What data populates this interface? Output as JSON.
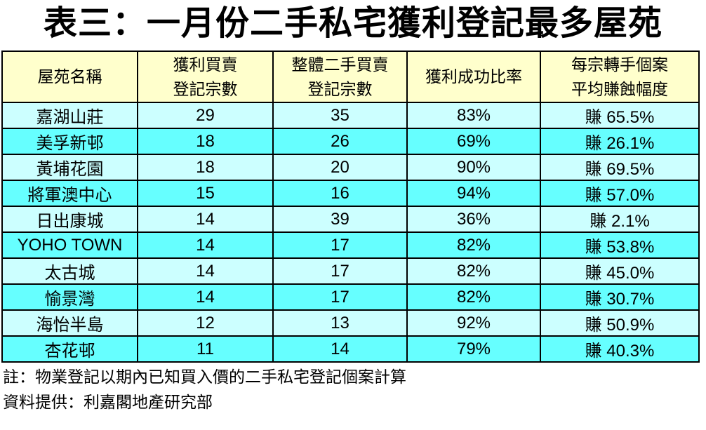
{
  "page": {
    "title": "表三：一月份二手私宅獲利登記最多屋苑",
    "notes": [
      "註：物業登記以期內已知買入價的二手私宅登記個案計算",
      "資料提供：利嘉閣地產研究部"
    ]
  },
  "colors": {
    "header_bg": "#FFFFCC",
    "row_odd_bg": "#CCFFFF",
    "row_even_bg": "#66FFFF",
    "border": "#000000",
    "text": "#000000",
    "page_bg": "#FFFFFF"
  },
  "table": {
    "columns": [
      "屋苑名稱",
      "獲利買賣\n登記宗數",
      "整體二手買賣\n登記宗數",
      "獲利成功比率",
      "每宗轉手個案\n平均賺蝕幅度"
    ],
    "rows": [
      [
        "嘉湖山莊",
        "29",
        "35",
        "83%",
        "賺 65.5%"
      ],
      [
        "美孚新邨",
        "18",
        "26",
        "69%",
        "賺 26.1%"
      ],
      [
        "黃埔花園",
        "18",
        "20",
        "90%",
        "賺 69.5%"
      ],
      [
        "將軍澳中心",
        "15",
        "16",
        "94%",
        "賺 57.0%"
      ],
      [
        "日出康城",
        "14",
        "39",
        "36%",
        "賺 2.1%"
      ],
      [
        "YOHO TOWN",
        "14",
        "17",
        "82%",
        "賺 53.8%"
      ],
      [
        "太古城",
        "14",
        "17",
        "82%",
        "賺 45.0%"
      ],
      [
        "愉景灣",
        "14",
        "17",
        "82%",
        "賺 30.7%"
      ],
      [
        "海怡半島",
        "12",
        "13",
        "92%",
        "賺 50.9%"
      ],
      [
        "杏花邨",
        "11",
        "14",
        "79%",
        "賺 40.3%"
      ]
    ]
  },
  "chart_data": {
    "type": "table",
    "title": "表三：一月份二手私宅獲利登記最多屋苑",
    "columns": [
      "屋苑名稱",
      "獲利買賣登記宗數",
      "整體二手買賣登記宗數",
      "獲利成功比率",
      "每宗轉手個案平均賺蝕幅度"
    ],
    "rows": [
      {
        "estate": "嘉湖山莊",
        "profit_registrations": 29,
        "total_registrations": 35,
        "profit_rate": "83%",
        "avg_gain": "賺 65.5%"
      },
      {
        "estate": "美孚新邨",
        "profit_registrations": 18,
        "total_registrations": 26,
        "profit_rate": "69%",
        "avg_gain": "賺 26.1%"
      },
      {
        "estate": "黃埔花園",
        "profit_registrations": 18,
        "total_registrations": 20,
        "profit_rate": "90%",
        "avg_gain": "賺 69.5%"
      },
      {
        "estate": "將軍澳中心",
        "profit_registrations": 15,
        "total_registrations": 16,
        "profit_rate": "94%",
        "avg_gain": "賺 57.0%"
      },
      {
        "estate": "日出康城",
        "profit_registrations": 14,
        "total_registrations": 39,
        "profit_rate": "36%",
        "avg_gain": "賺 2.1%"
      },
      {
        "estate": "YOHO TOWN",
        "profit_registrations": 14,
        "total_registrations": 17,
        "profit_rate": "82%",
        "avg_gain": "賺 53.8%"
      },
      {
        "estate": "太古城",
        "profit_registrations": 14,
        "total_registrations": 17,
        "profit_rate": "82%",
        "avg_gain": "賺 45.0%"
      },
      {
        "estate": "愉景灣",
        "profit_registrations": 14,
        "total_registrations": 17,
        "profit_rate": "82%",
        "avg_gain": "賺 30.7%"
      },
      {
        "estate": "海怡半島",
        "profit_registrations": 12,
        "total_registrations": 13,
        "profit_rate": "92%",
        "avg_gain": "賺 50.9%"
      },
      {
        "estate": "杏花邨",
        "profit_registrations": 11,
        "total_registrations": 14,
        "profit_rate": "79%",
        "avg_gain": "賺 40.3%"
      }
    ],
    "notes": [
      "註：物業登記以期內已知買入價的二手私宅登記個案計算",
      "資料提供：利嘉閣地產研究部"
    ]
  }
}
